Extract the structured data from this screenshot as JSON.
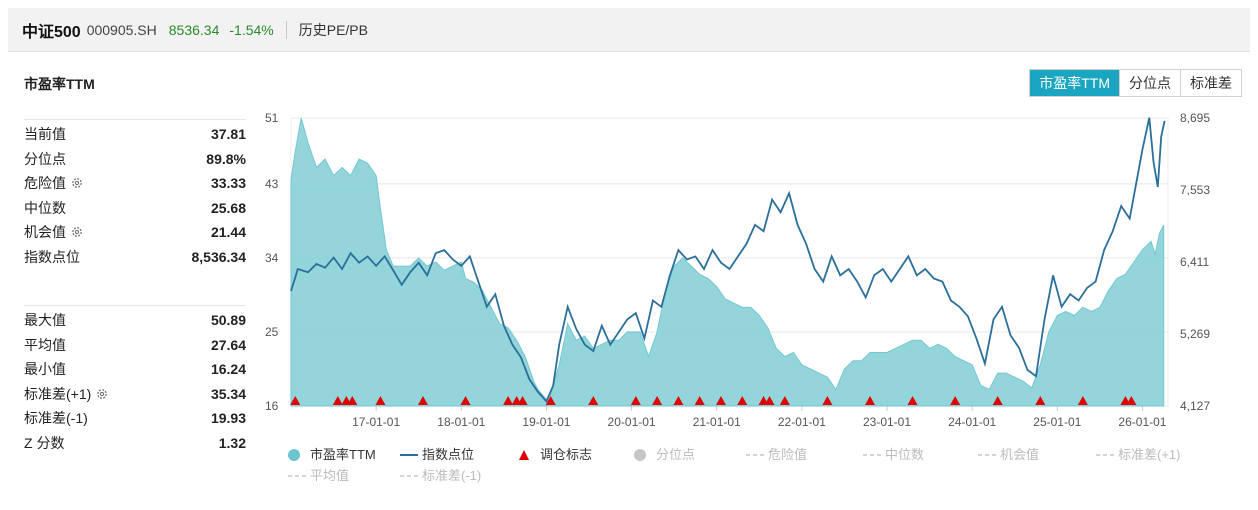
{
  "header": {
    "name": "中证500",
    "code": "000905.SH",
    "price": "8536.34",
    "change": "-1.54%",
    "subtitle": "历史PE/PB"
  },
  "section_title": "市盈率TTM",
  "tabs": [
    {
      "label": "市盈率TTM",
      "active": true
    },
    {
      "label": "分位点",
      "active": false
    },
    {
      "label": "标准差",
      "active": false
    }
  ],
  "stats_top": [
    {
      "label": "当前值",
      "value": "37.81",
      "gear": false
    },
    {
      "label": "分位点",
      "value": "89.8%",
      "gear": false
    },
    {
      "label": "危险值",
      "value": "33.33",
      "gear": true
    },
    {
      "label": "中位数",
      "value": "25.68",
      "gear": false
    },
    {
      "label": "机会值",
      "value": "21.44",
      "gear": true
    },
    {
      "label": "指数点位",
      "value": "8,536.34",
      "gear": false
    }
  ],
  "stats_bottom": [
    {
      "label": "最大值",
      "value": "50.89",
      "gear": false
    },
    {
      "label": "平均值",
      "value": "27.64",
      "gear": false
    },
    {
      "label": "最小值",
      "value": "16.24",
      "gear": false
    },
    {
      "label": "标准差(+1)",
      "value": "35.34",
      "gear": true
    },
    {
      "label": "标准差(-1)",
      "value": "19.93",
      "gear": false
    },
    {
      "label": "Z 分数",
      "value": "1.32",
      "gear": false
    }
  ],
  "colors": {
    "pe_fill": "#8ed3da",
    "pe_fill_dark": "#6cc5cf",
    "index_line": "#2a6f9a",
    "marker": "#e00000",
    "accent": "#1aa6c0",
    "grid": "#e8e8e8",
    "legend_inactive": "#c6c6c6"
  },
  "chart_data": {
    "type": "area",
    "x_ticks": [
      "17-01-01",
      "18-01-01",
      "19-01-01",
      "20-01-01",
      "21-01-01",
      "22-01-01",
      "23-01-01",
      "24-01-01",
      "25-01-01",
      "26-01-01"
    ],
    "x_range": [
      2016.0,
      2026.3
    ],
    "y_left_ticks": [
      "16",
      "25",
      "34",
      "43",
      "51"
    ],
    "y_left_range": [
      16,
      51
    ],
    "y_right_ticks": [
      "4,127",
      "5,269",
      "6,411",
      "7,553",
      "8,695"
    ],
    "y_right_range": [
      4127,
      8695
    ],
    "series": [
      {
        "name": "市盈率TTM",
        "kind": "area",
        "axis": "left",
        "points": [
          [
            2016.0,
            43.5
          ],
          [
            2016.05,
            47
          ],
          [
            2016.12,
            51
          ],
          [
            2016.2,
            48
          ],
          [
            2016.3,
            45
          ],
          [
            2016.4,
            46
          ],
          [
            2016.5,
            44
          ],
          [
            2016.6,
            45
          ],
          [
            2016.7,
            44
          ],
          [
            2016.8,
            46
          ],
          [
            2016.9,
            45.5
          ],
          [
            2017.0,
            44
          ],
          [
            2017.05,
            40
          ],
          [
            2017.12,
            35
          ],
          [
            2017.2,
            33
          ],
          [
            2017.3,
            33
          ],
          [
            2017.4,
            33
          ],
          [
            2017.5,
            34
          ],
          [
            2017.6,
            33
          ],
          [
            2017.7,
            33.5
          ],
          [
            2017.8,
            32.5
          ],
          [
            2017.9,
            33
          ],
          [
            2018.0,
            33.5
          ],
          [
            2018.05,
            31.5
          ],
          [
            2018.15,
            31
          ],
          [
            2018.25,
            30
          ],
          [
            2018.35,
            28
          ],
          [
            2018.45,
            26
          ],
          [
            2018.55,
            25.5
          ],
          [
            2018.65,
            24
          ],
          [
            2018.75,
            22
          ],
          [
            2018.85,
            19
          ],
          [
            2018.9,
            18
          ],
          [
            2019.0,
            16.8
          ],
          [
            2019.05,
            17.5
          ],
          [
            2019.15,
            21
          ],
          [
            2019.25,
            26
          ],
          [
            2019.35,
            24
          ],
          [
            2019.45,
            24.5
          ],
          [
            2019.55,
            23
          ],
          [
            2019.65,
            23.5
          ],
          [
            2019.75,
            24
          ],
          [
            2019.85,
            24
          ],
          [
            2019.95,
            25
          ],
          [
            2020.1,
            25
          ],
          [
            2020.2,
            22
          ],
          [
            2020.3,
            25
          ],
          [
            2020.4,
            30
          ],
          [
            2020.5,
            33
          ],
          [
            2020.6,
            34
          ],
          [
            2020.7,
            33
          ],
          [
            2020.8,
            32
          ],
          [
            2020.9,
            31.5
          ],
          [
            2021.0,
            30.5
          ],
          [
            2021.1,
            29
          ],
          [
            2021.2,
            28.5
          ],
          [
            2021.3,
            28
          ],
          [
            2021.4,
            28
          ],
          [
            2021.5,
            27
          ],
          [
            2021.6,
            25.5
          ],
          [
            2021.7,
            23
          ],
          [
            2021.8,
            22
          ],
          [
            2021.9,
            22.5
          ],
          [
            2022.0,
            21
          ],
          [
            2022.1,
            20.5
          ],
          [
            2022.2,
            20
          ],
          [
            2022.3,
            19.5
          ],
          [
            2022.4,
            18
          ],
          [
            2022.5,
            20.5
          ],
          [
            2022.6,
            21.5
          ],
          [
            2022.7,
            21.5
          ],
          [
            2022.8,
            22.5
          ],
          [
            2022.9,
            22.5
          ],
          [
            2023.0,
            22.5
          ],
          [
            2023.1,
            23
          ],
          [
            2023.2,
            23.5
          ],
          [
            2023.3,
            24
          ],
          [
            2023.4,
            24
          ],
          [
            2023.5,
            23
          ],
          [
            2023.6,
            23.5
          ],
          [
            2023.7,
            23
          ],
          [
            2023.8,
            22
          ],
          [
            2023.9,
            21.5
          ],
          [
            2024.0,
            21
          ],
          [
            2024.1,
            18.5
          ],
          [
            2024.2,
            18
          ],
          [
            2024.3,
            20
          ],
          [
            2024.4,
            20
          ],
          [
            2024.5,
            19.5
          ],
          [
            2024.6,
            19
          ],
          [
            2024.7,
            18.2
          ],
          [
            2024.8,
            21
          ],
          [
            2024.9,
            25
          ],
          [
            2025.0,
            27
          ],
          [
            2025.1,
            27.5
          ],
          [
            2025.2,
            27
          ],
          [
            2025.3,
            28
          ],
          [
            2025.4,
            27.5
          ],
          [
            2025.5,
            28
          ],
          [
            2025.6,
            30
          ],
          [
            2025.7,
            31.5
          ],
          [
            2025.8,
            32
          ],
          [
            2025.9,
            33.5
          ],
          [
            2026.0,
            35
          ],
          [
            2026.1,
            36
          ],
          [
            2026.15,
            34.5
          ],
          [
            2026.2,
            37
          ],
          [
            2026.25,
            38
          ]
        ]
      },
      {
        "name": "指数点位",
        "kind": "line",
        "axis": "right",
        "points": [
          [
            2016.0,
            5950
          ],
          [
            2016.08,
            6300
          ],
          [
            2016.2,
            6250
          ],
          [
            2016.3,
            6380
          ],
          [
            2016.4,
            6320
          ],
          [
            2016.5,
            6480
          ],
          [
            2016.6,
            6300
          ],
          [
            2016.7,
            6550
          ],
          [
            2016.8,
            6400
          ],
          [
            2016.9,
            6500
          ],
          [
            2017.0,
            6350
          ],
          [
            2017.1,
            6500
          ],
          [
            2017.2,
            6280
          ],
          [
            2017.3,
            6050
          ],
          [
            2017.4,
            6250
          ],
          [
            2017.5,
            6400
          ],
          [
            2017.6,
            6200
          ],
          [
            2017.7,
            6550
          ],
          [
            2017.8,
            6600
          ],
          [
            2017.9,
            6450
          ],
          [
            2018.0,
            6350
          ],
          [
            2018.1,
            6500
          ],
          [
            2018.2,
            6100
          ],
          [
            2018.3,
            5700
          ],
          [
            2018.4,
            5900
          ],
          [
            2018.5,
            5400
          ],
          [
            2018.6,
            5100
          ],
          [
            2018.7,
            4900
          ],
          [
            2018.8,
            4550
          ],
          [
            2018.9,
            4350
          ],
          [
            2019.0,
            4200
          ],
          [
            2019.08,
            4450
          ],
          [
            2019.15,
            5100
          ],
          [
            2019.25,
            5700
          ],
          [
            2019.35,
            5350
          ],
          [
            2019.45,
            5100
          ],
          [
            2019.55,
            5000
          ],
          [
            2019.65,
            5400
          ],
          [
            2019.75,
            5100
          ],
          [
            2019.85,
            5300
          ],
          [
            2019.95,
            5500
          ],
          [
            2020.05,
            5600
          ],
          [
            2020.15,
            5200
          ],
          [
            2020.25,
            5800
          ],
          [
            2020.35,
            5700
          ],
          [
            2020.45,
            6200
          ],
          [
            2020.55,
            6600
          ],
          [
            2020.65,
            6450
          ],
          [
            2020.75,
            6500
          ],
          [
            2020.85,
            6300
          ],
          [
            2020.95,
            6600
          ],
          [
            2021.05,
            6400
          ],
          [
            2021.15,
            6300
          ],
          [
            2021.25,
            6500
          ],
          [
            2021.35,
            6700
          ],
          [
            2021.45,
            7000
          ],
          [
            2021.55,
            6900
          ],
          [
            2021.65,
            7400
          ],
          [
            2021.75,
            7200
          ],
          [
            2021.85,
            7500
          ],
          [
            2021.95,
            7000
          ],
          [
            2022.05,
            6700
          ],
          [
            2022.15,
            6300
          ],
          [
            2022.25,
            6100
          ],
          [
            2022.35,
            6500
          ],
          [
            2022.45,
            6200
          ],
          [
            2022.55,
            6300
          ],
          [
            2022.65,
            6100
          ],
          [
            2022.75,
            5850
          ],
          [
            2022.85,
            6200
          ],
          [
            2022.95,
            6300
          ],
          [
            2023.05,
            6100
          ],
          [
            2023.15,
            6300
          ],
          [
            2023.25,
            6500
          ],
          [
            2023.35,
            6200
          ],
          [
            2023.45,
            6300
          ],
          [
            2023.55,
            6150
          ],
          [
            2023.65,
            6100
          ],
          [
            2023.75,
            5800
          ],
          [
            2023.85,
            5700
          ],
          [
            2023.95,
            5550
          ],
          [
            2024.05,
            5200
          ],
          [
            2024.15,
            4800
          ],
          [
            2024.25,
            5500
          ],
          [
            2024.35,
            5700
          ],
          [
            2024.45,
            5250
          ],
          [
            2024.55,
            5050
          ],
          [
            2024.65,
            4700
          ],
          [
            2024.75,
            4600
          ],
          [
            2024.85,
            5500
          ],
          [
            2024.95,
            6200
          ],
          [
            2025.05,
            5700
          ],
          [
            2025.15,
            5900
          ],
          [
            2025.25,
            5800
          ],
          [
            2025.35,
            6000
          ],
          [
            2025.45,
            6100
          ],
          [
            2025.55,
            6600
          ],
          [
            2025.65,
            6900
          ],
          [
            2025.75,
            7300
          ],
          [
            2025.85,
            7100
          ],
          [
            2026.0,
            8200
          ],
          [
            2026.08,
            8700
          ],
          [
            2026.13,
            8000
          ],
          [
            2026.18,
            7600
          ],
          [
            2026.22,
            8400
          ],
          [
            2026.26,
            8650
          ]
        ]
      }
    ],
    "markers": {
      "name": "调仓标志",
      "x": [
        2016.05,
        2016.55,
        2016.65,
        2016.72,
        2017.05,
        2017.55,
        2018.05,
        2018.55,
        2018.65,
        2018.72,
        2019.05,
        2019.55,
        2020.05,
        2020.3,
        2020.55,
        2020.8,
        2021.05,
        2021.3,
        2021.55,
        2021.62,
        2021.8,
        2022.3,
        2022.8,
        2023.3,
        2023.8,
        2024.3,
        2024.8,
        2025.3,
        2025.8,
        2025.87
      ]
    },
    "legend": [
      {
        "label": "市盈率TTM",
        "symbol": "dot",
        "active": true
      },
      {
        "label": "指数点位",
        "symbol": "line",
        "active": true
      },
      {
        "label": "调仓标志",
        "symbol": "triangle",
        "active": true
      },
      {
        "label": "分位点",
        "symbol": "dot",
        "active": false
      },
      {
        "label": "危险值",
        "symbol": "dash",
        "active": false
      },
      {
        "label": "中位数",
        "symbol": "dash",
        "active": false
      },
      {
        "label": "机会值",
        "symbol": "dash",
        "active": false
      },
      {
        "label": "标准差(+1)",
        "symbol": "dash",
        "active": false
      },
      {
        "label": "平均值",
        "symbol": "dash",
        "active": false
      },
      {
        "label": "标准差(-1)",
        "symbol": "dash",
        "active": false
      }
    ]
  }
}
